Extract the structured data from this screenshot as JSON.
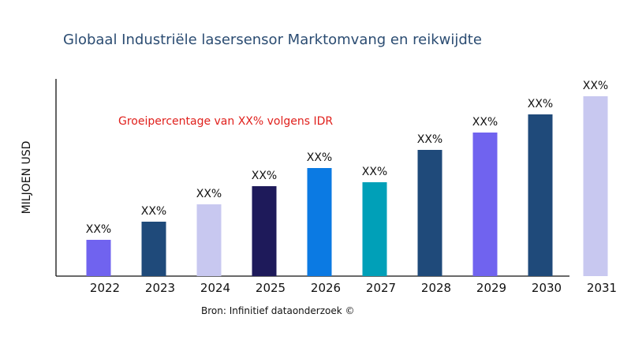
{
  "chart_data": {
    "type": "bar",
    "title": "Globaal Industriële lasersensor Marktomvang en reikwijdte",
    "ylabel": "MILJOEN USD",
    "xlabel": "",
    "annotation": "Groeipercentage van XX% volgens IDR",
    "source": "Bron: Infinitief dataonderzoek ©",
    "categories": [
      "2022",
      "2023",
      "2024",
      "2025",
      "2026",
      "2027",
      "2028",
      "2029",
      "2030",
      "2031"
    ],
    "values": [
      46,
      69,
      91,
      114,
      137,
      119,
      160,
      182,
      205,
      228
    ],
    "data_labels": [
      "XX%",
      "XX%",
      "XX%",
      "XX%",
      "XX%",
      "XX%",
      "XX%",
      "XX%",
      "XX%",
      "XX%"
    ],
    "colors": [
      "#7063ef",
      "#1f4a7a",
      "#c8c8f0",
      "#1e1a5a",
      "#0b7ae3",
      "#00a0b8",
      "#1f4a7a",
      "#7063ef",
      "#1f4a7a",
      "#c8c8f0"
    ],
    "ylim": [
      0,
      250
    ],
    "grid": false,
    "legend": "none"
  }
}
